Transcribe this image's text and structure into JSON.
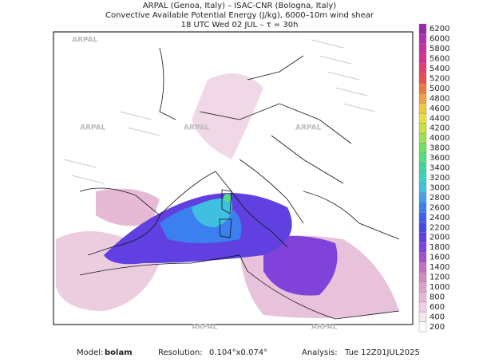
{
  "header": {
    "line1": "ARPAL (Genoa, Italy)  –  ISAC-CNR (Bologna, Italy)",
    "line2": "Convective Available Potential Energy (J/kg), 6000–10m wind shear",
    "line3": "18 UTC Wed 02 JUL  –  τ = 30h"
  },
  "watermark": "ARPAL",
  "colorbar": {
    "levels": [
      200,
      400,
      600,
      800,
      1000,
      1200,
      1400,
      1600,
      1800,
      2000,
      2200,
      2400,
      2600,
      2800,
      3000,
      3200,
      3400,
      3600,
      3800,
      4000,
      4200,
      4400,
      4600,
      4800,
      5000,
      5200,
      5400,
      5600,
      5800,
      6000,
      6200
    ],
    "colors": [
      "#ffffff",
      "#f6e6ef",
      "#eed0e2",
      "#e6b9d5",
      "#dca2c9",
      "#d08ac0",
      "#c070bc",
      "#a052c8",
      "#8042d8",
      "#6040e0",
      "#4848e8",
      "#4060f0",
      "#3c80f0",
      "#40a0e8",
      "#40c0e0",
      "#40d0c0",
      "#40d8a0",
      "#50e080",
      "#70e060",
      "#a0e050",
      "#c8e040",
      "#e8e040",
      "#f0c840",
      "#f0a040",
      "#f07840",
      "#e85050",
      "#e04070",
      "#d83090",
      "#c830a0",
      "#b030b0",
      "#9828a8"
    ]
  },
  "footer": {
    "model_label": "Model:",
    "model": "bolam",
    "resolution_label": "Resolution:",
    "resolution": "0.104°x0.074°",
    "analysis_label": "Analysis:",
    "analysis": "Tue 12Z01JUL2025"
  }
}
